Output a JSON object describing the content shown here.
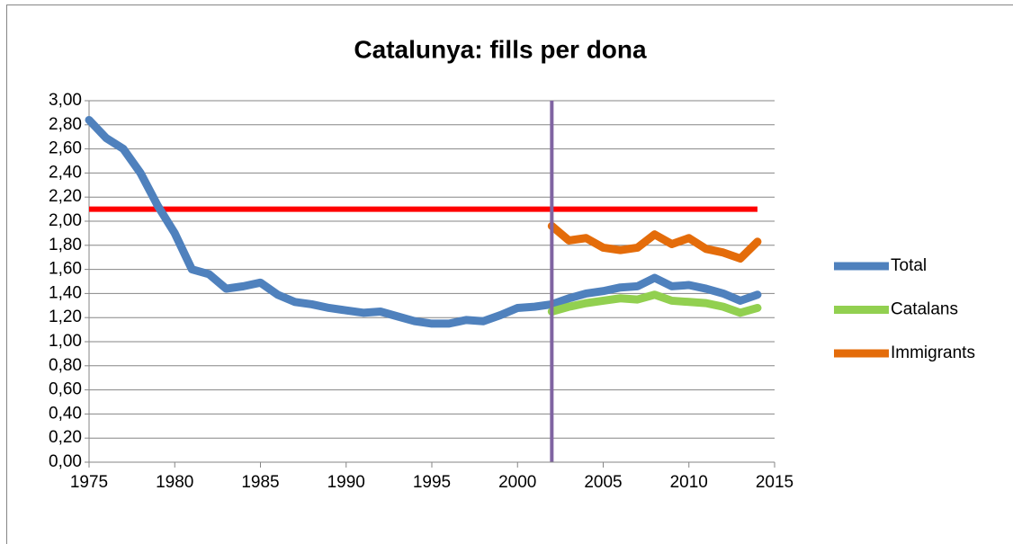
{
  "chart_data": {
    "type": "line",
    "title": "Catalunya: fills per dona",
    "x": [
      1975,
      1976,
      1977,
      1978,
      1979,
      1980,
      1981,
      1982,
      1983,
      1984,
      1985,
      1986,
      1987,
      1988,
      1989,
      1990,
      1991,
      1992,
      1993,
      1994,
      1995,
      1996,
      1997,
      1998,
      1999,
      2000,
      2001,
      2002,
      2003,
      2004,
      2005,
      2006,
      2007,
      2008,
      2009,
      2010,
      2011,
      2012,
      2013,
      2014
    ],
    "series": [
      {
        "name": "Total",
        "color": "#4f81bd",
        "values": [
          2.84,
          2.69,
          2.6,
          2.4,
          2.13,
          1.9,
          1.6,
          1.56,
          1.44,
          1.46,
          1.49,
          1.39,
          1.33,
          1.31,
          1.28,
          1.26,
          1.24,
          1.25,
          1.21,
          1.17,
          1.15,
          1.15,
          1.18,
          1.17,
          1.22,
          1.28,
          1.29,
          1.31,
          1.36,
          1.4,
          1.42,
          1.45,
          1.46,
          1.53,
          1.46,
          1.47,
          1.44,
          1.4,
          1.34,
          1.39
        ]
      },
      {
        "name": "Catalans",
        "color": "#92d050",
        "values": [
          null,
          null,
          null,
          null,
          null,
          null,
          null,
          null,
          null,
          null,
          null,
          null,
          null,
          null,
          null,
          null,
          null,
          null,
          null,
          null,
          null,
          null,
          null,
          null,
          null,
          null,
          null,
          1.25,
          1.29,
          1.32,
          1.34,
          1.36,
          1.35,
          1.39,
          1.34,
          1.33,
          1.32,
          1.29,
          1.24,
          1.28
        ]
      },
      {
        "name": "Immigrants",
        "color": "#e46c0a",
        "values": [
          null,
          null,
          null,
          null,
          null,
          null,
          null,
          null,
          null,
          null,
          null,
          null,
          null,
          null,
          null,
          null,
          null,
          null,
          null,
          null,
          null,
          null,
          null,
          null,
          null,
          null,
          null,
          1.96,
          1.84,
          1.86,
          1.78,
          1.76,
          1.78,
          1.89,
          1.81,
          1.86,
          1.77,
          1.74,
          1.69,
          1.83
        ]
      }
    ],
    "hline": {
      "value": 2.1,
      "x": [
        1975,
        2014
      ],
      "color": "#ff0000"
    },
    "vline": {
      "value": 2002,
      "color": "#8064a2"
    },
    "xlim": [
      1975,
      2015
    ],
    "xticks": [
      1975,
      1980,
      1985,
      1990,
      1995,
      2000,
      2005,
      2010,
      2015
    ],
    "ylim": [
      0,
      3
    ],
    "yticks": [
      {
        "value": 0,
        "label": "0,00"
      },
      {
        "value": 0.2,
        "label": "0,20"
      },
      {
        "value": 0.4,
        "label": "0,40"
      },
      {
        "value": 0.6,
        "label": "0,60"
      },
      {
        "value": 0.8,
        "label": "0,80"
      },
      {
        "value": 1,
        "label": "1,00"
      },
      {
        "value": 1.2,
        "label": "1,20"
      },
      {
        "value": 1.4,
        "label": "1,40"
      },
      {
        "value": 1.6,
        "label": "1,60"
      },
      {
        "value": 1.8,
        "label": "1,80"
      },
      {
        "value": 2,
        "label": "2,00"
      },
      {
        "value": 2.2,
        "label": "2,20"
      },
      {
        "value": 2.4,
        "label": "2,40"
      },
      {
        "value": 2.6,
        "label": "2,60"
      },
      {
        "value": 2.8,
        "label": "2,80"
      },
      {
        "value": 3,
        "label": "3,00"
      }
    ],
    "grid": true,
    "legend": "right"
  }
}
